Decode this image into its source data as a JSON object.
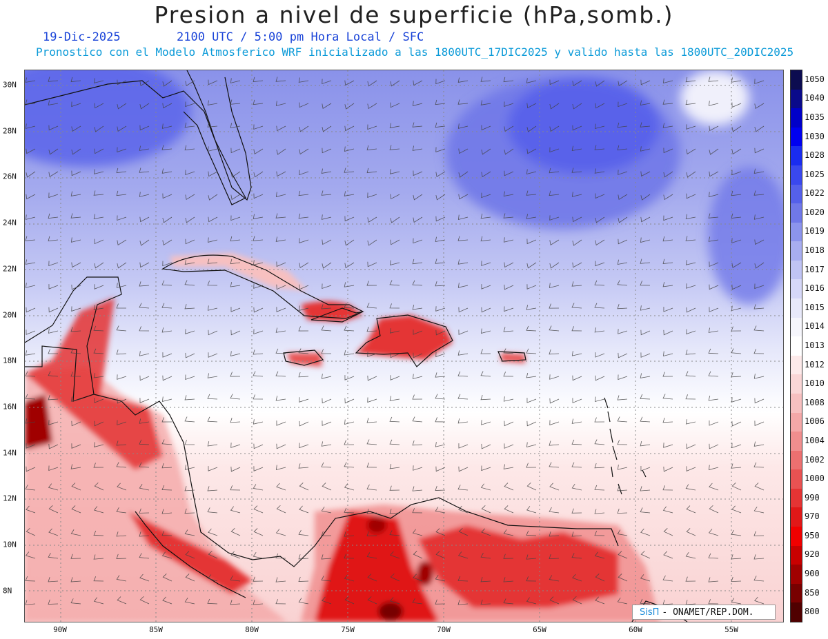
{
  "header": {
    "title": "Presion a nivel de superficie (hPa,somb.)",
    "date": "19-Dic-2025",
    "time_info": "2100 UTC / 5:00 pm Hora Local / SFC",
    "model_info": "Pronostico con el Modelo Atmosferico WRF inicializado a las 1800UTC_17DIC2025 y valido hasta las  1800UTC_20DIC2025"
  },
  "map": {
    "lat_labels": [
      "30N",
      "28N",
      "26N",
      "24N",
      "22N",
      "20N",
      "18N",
      "16N",
      "14N",
      "12N",
      "10N",
      "8N"
    ],
    "lon_labels": [
      "90W",
      "85W",
      "80W",
      "75W",
      "70W",
      "65W",
      "60W",
      "55W"
    ],
    "grid": true
  },
  "colorbar": {
    "levels": [
      "1050",
      "1040",
      "1035",
      "1030",
      "1028",
      "1025",
      "1022",
      "1020",
      "1019",
      "1018",
      "1017",
      "1016",
      "1015",
      "1014",
      "1013",
      "1012",
      "1010",
      "1008",
      "1006",
      "1004",
      "1002",
      "1000",
      "990",
      "970",
      "950",
      "920",
      "900",
      "850",
      "800"
    ],
    "colors": [
      "#0c0c50",
      "#0a0a8a",
      "#0000c8",
      "#0000f0",
      "#1a2cf0",
      "#3a48ee",
      "#5560ea",
      "#7078e8",
      "#8c94ec",
      "#a8aef0",
      "#c0c4f4",
      "#d6d8f8",
      "#e8e9fa",
      "#f6f6fc",
      "#ffffff",
      "#fdeaea",
      "#fad6d6",
      "#f7c0c0",
      "#f4a8a8",
      "#f08e8e",
      "#ec7070",
      "#e85252",
      "#e43434",
      "#e01818",
      "#f00000",
      "#c80000",
      "#a00000",
      "#780000",
      "#500000"
    ]
  },
  "logo": {
    "brand": "SisΠ",
    "text": "- ONAMET/REP.DOM."
  }
}
